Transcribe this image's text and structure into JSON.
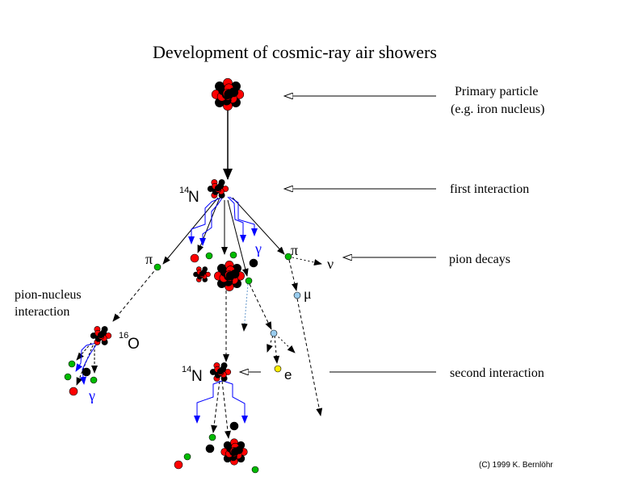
{
  "title": "Development of cosmic-ray air showers",
  "labels": {
    "primary_line1": "Primary particle",
    "primary_line2": "(e.g. iron nucleus)",
    "first_interaction": "first interaction",
    "pion_decays": "pion decays",
    "pion_nucleus_line1": "pion-nucleus",
    "pion_nucleus_line2": "interaction",
    "second_interaction": "second interaction",
    "copyright": "(C) 1999 K. Bernlöhr"
  },
  "symbols": {
    "n14_mass": "14",
    "n14_element": "N",
    "o16_mass": "16",
    "o16_element": "O",
    "pion": "π",
    "gamma": "γ",
    "neutrino": "ν",
    "muon": "μ",
    "electron": "e"
  },
  "colors": {
    "proton": "#ff0000",
    "neutron": "#000000",
    "pion": "#00bb00",
    "muon": "#99ccee",
    "electron": "#ffee00",
    "photon": "#0000ff"
  }
}
